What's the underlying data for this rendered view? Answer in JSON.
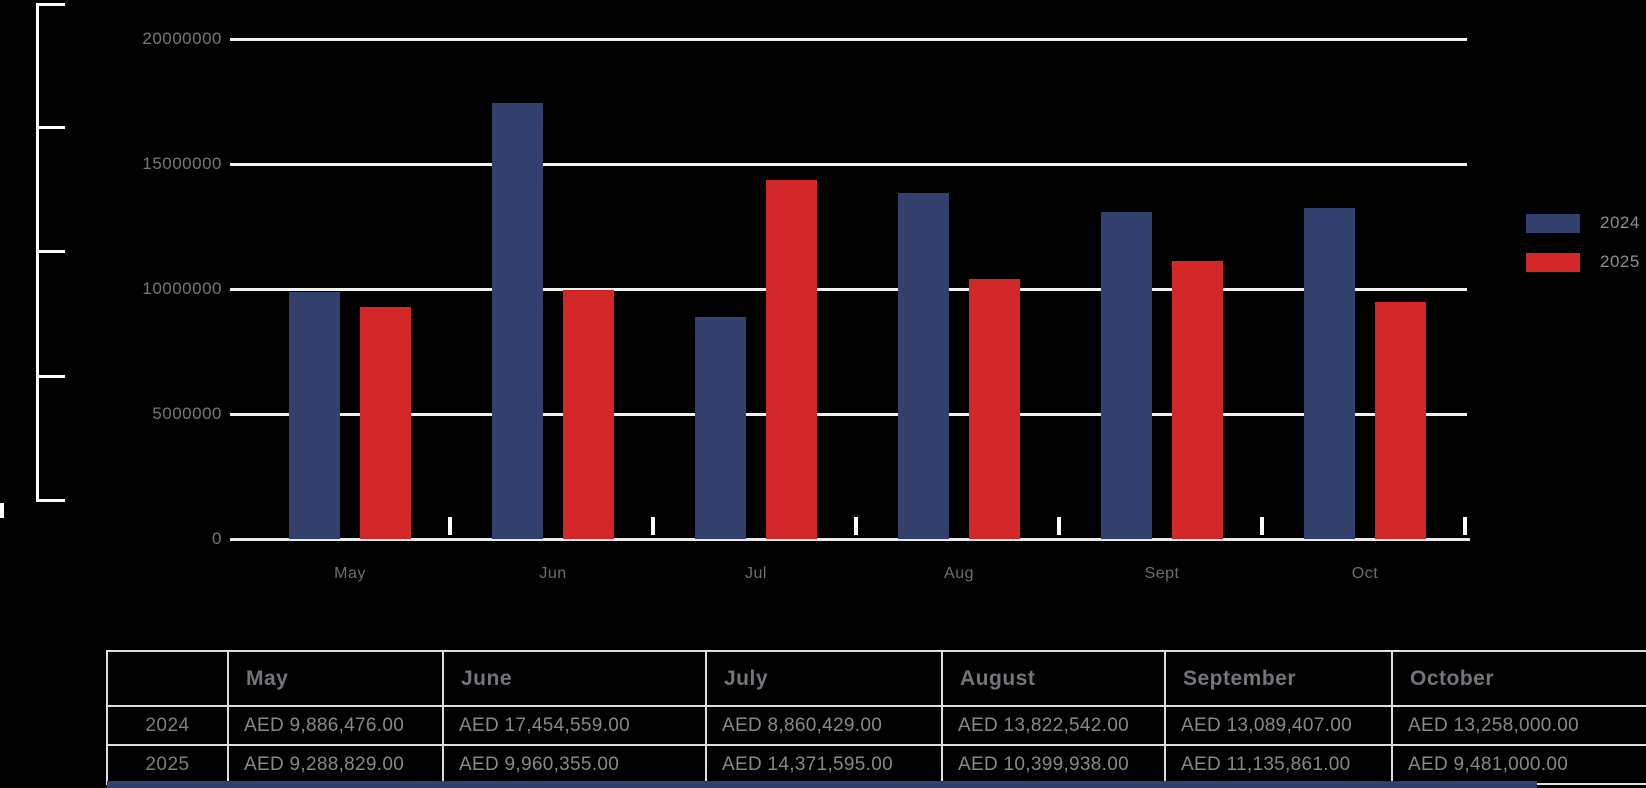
{
  "colors": {
    "background": "#000000",
    "bar_2024": "#333f6d",
    "bar_2025": "#d22729",
    "gridline": "#f2f2f2",
    "axis_text": "#76777a",
    "month_text": "#6e6e6e",
    "legend_text": "#8e8e8e",
    "table_border": "#dedede",
    "bottom_bar": "#333f6d"
  },
  "chart_data": {
    "type": "bar",
    "title": "",
    "xlabel": "",
    "ylabel": "",
    "categories": [
      "May",
      "Jun",
      "Jul",
      "Aug",
      "Sept",
      "Oct"
    ],
    "series": [
      {
        "name": "2024",
        "color_key": "bar_2024",
        "values": [
          9886476,
          17454559,
          8860429,
          13822542,
          13089407,
          13258000
        ]
      },
      {
        "name": "2025",
        "color_key": "bar_2025",
        "values": [
          9288829,
          9960355,
          14371595,
          10399938,
          11135861,
          9481000
        ]
      }
    ],
    "ylim": [
      0,
      20000000
    ],
    "grid": true,
    "legend_position": "right",
    "y_ticks": [
      {
        "value": 20000000,
        "label": "20000000"
      },
      {
        "value": 15000000,
        "label": "15000000"
      },
      {
        "value": 10000000,
        "label": "10000000"
      },
      {
        "value": 5000000,
        "label": "5000000"
      },
      {
        "value": 0,
        "label": "0"
      }
    ]
  },
  "legend": {
    "items": [
      {
        "label": "2024"
      },
      {
        "label": "2025"
      }
    ]
  },
  "table": {
    "column_headers": [
      "",
      "May",
      "June",
      "July",
      "August",
      "September",
      "October"
    ],
    "rows": [
      {
        "label": "2024",
        "values": [
          "AED 9,886,476.00",
          "AED 17,454,559.00",
          "AED 8,860,429.00",
          "AED 13,822,542.00",
          "AED 13,089,407.00",
          "AED 13,258,000.00"
        ]
      },
      {
        "label": "2025",
        "values": [
          "AED 9,288,829.00",
          "AED 9,960,355.00",
          "AED 14,371,595.00",
          "AED 10,399,938.00",
          "AED 11,135,861.00",
          "AED 9,481,000.00"
        ]
      }
    ]
  }
}
